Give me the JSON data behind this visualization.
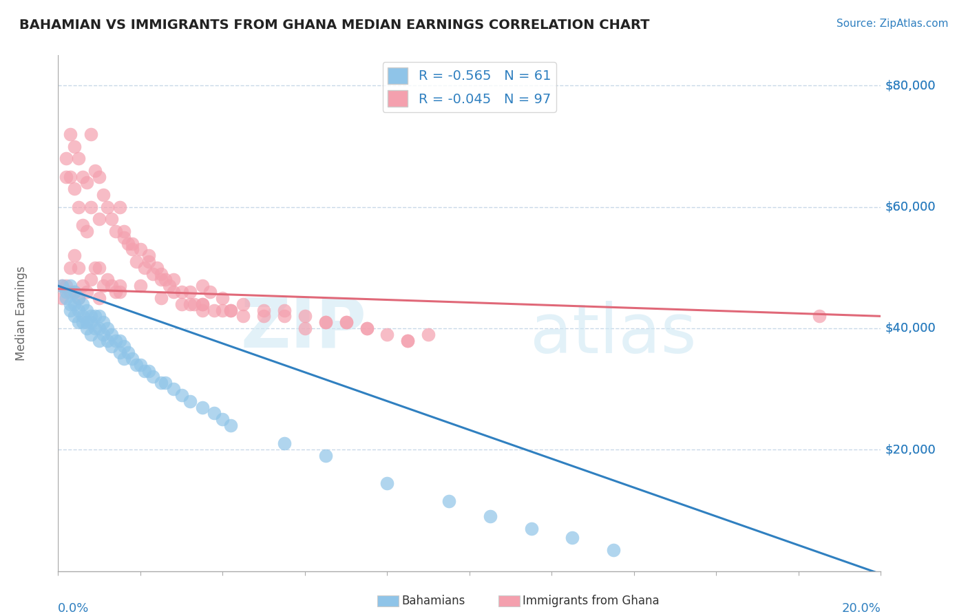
{
  "title": "BAHAMIAN VS IMMIGRANTS FROM GHANA MEDIAN EARNINGS CORRELATION CHART",
  "source": "Source: ZipAtlas.com",
  "ylabel": "Median Earnings",
  "xmin": 0.0,
  "xmax": 20.0,
  "ymin": 0,
  "ymax": 85000,
  "yticks": [
    0,
    20000,
    40000,
    60000,
    80000
  ],
  "ytick_labels": [
    "",
    "$20,000",
    "$40,000",
    "$60,000",
    "$80,000"
  ],
  "legend_r1_val": "-0.565",
  "legend_n1_val": "61",
  "legend_r2_val": "-0.045",
  "legend_n2_val": "97",
  "blue_color": "#8fc4e8",
  "pink_color": "#f4a0ae",
  "blue_line_color": "#3080c0",
  "pink_line_color": "#e06878",
  "text_blue": "#3080c0",
  "background": "#ffffff",
  "grid_color": "#c8d8e8",
  "blue_line_x0": 0.0,
  "blue_line_y0": 47000,
  "blue_line_x1": 20.0,
  "blue_line_y1": -500,
  "pink_line_x0": 0.0,
  "pink_line_y0": 46500,
  "pink_line_x1": 20.0,
  "pink_line_y1": 42000,
  "blue_scatter_x": [
    0.1,
    0.2,
    0.2,
    0.3,
    0.3,
    0.3,
    0.4,
    0.4,
    0.4,
    0.5,
    0.5,
    0.5,
    0.6,
    0.6,
    0.6,
    0.7,
    0.7,
    0.7,
    0.8,
    0.8,
    0.8,
    0.9,
    0.9,
    1.0,
    1.0,
    1.0,
    1.1,
    1.1,
    1.2,
    1.2,
    1.3,
    1.3,
    1.4,
    1.5,
    1.5,
    1.6,
    1.6,
    1.7,
    1.8,
    1.9,
    2.0,
    2.1,
    2.2,
    2.3,
    2.5,
    2.6,
    2.8,
    3.0,
    3.2,
    3.5,
    3.8,
    4.0,
    4.2,
    5.5,
    6.5,
    8.0,
    9.5,
    10.5,
    11.5,
    12.5,
    13.5
  ],
  "blue_scatter_y": [
    47000,
    46000,
    45000,
    47000,
    44000,
    43000,
    46000,
    44000,
    42000,
    45000,
    43000,
    41000,
    44000,
    42000,
    41000,
    43000,
    41000,
    40000,
    42000,
    41000,
    39000,
    42000,
    40000,
    42000,
    40000,
    38000,
    41000,
    39000,
    40000,
    38000,
    39000,
    37000,
    38000,
    38000,
    36000,
    37000,
    35000,
    36000,
    35000,
    34000,
    34000,
    33000,
    33000,
    32000,
    31000,
    31000,
    30000,
    29000,
    28000,
    27000,
    26000,
    25000,
    24000,
    21000,
    19000,
    14500,
    11500,
    9000,
    7000,
    5500,
    3500
  ],
  "pink_scatter_x": [
    0.1,
    0.1,
    0.2,
    0.2,
    0.2,
    0.3,
    0.3,
    0.3,
    0.3,
    0.4,
    0.4,
    0.4,
    0.4,
    0.5,
    0.5,
    0.5,
    0.5,
    0.6,
    0.6,
    0.6,
    0.7,
    0.7,
    0.7,
    0.8,
    0.8,
    0.8,
    0.9,
    0.9,
    1.0,
    1.0,
    1.0,
    1.0,
    1.1,
    1.1,
    1.2,
    1.2,
    1.3,
    1.3,
    1.4,
    1.4,
    1.5,
    1.5,
    1.6,
    1.7,
    1.8,
    1.9,
    2.0,
    2.0,
    2.1,
    2.2,
    2.3,
    2.4,
    2.5,
    2.6,
    2.7,
    2.8,
    3.0,
    3.2,
    3.3,
    3.5,
    3.5,
    3.7,
    3.8,
    4.0,
    4.2,
    4.5,
    5.0,
    5.5,
    6.0,
    6.5,
    7.0,
    7.5,
    8.5,
    9.0,
    1.6,
    1.8,
    2.2,
    2.5,
    2.8,
    3.0,
    3.5,
    4.0,
    4.5,
    5.0,
    6.0,
    3.2,
    4.2,
    5.5,
    6.5,
    7.0,
    7.5,
    8.0,
    8.5,
    18.5,
    1.5,
    2.5,
    3.5
  ],
  "pink_scatter_y": [
    47000,
    45000,
    68000,
    65000,
    47000,
    72000,
    65000,
    50000,
    46000,
    70000,
    63000,
    52000,
    46000,
    68000,
    60000,
    50000,
    45000,
    65000,
    57000,
    47000,
    64000,
    56000,
    46000,
    72000,
    60000,
    48000,
    66000,
    50000,
    65000,
    58000,
    50000,
    45000,
    62000,
    47000,
    60000,
    48000,
    58000,
    47000,
    56000,
    46000,
    60000,
    47000,
    55000,
    54000,
    53000,
    51000,
    53000,
    47000,
    50000,
    52000,
    49000,
    50000,
    49000,
    48000,
    47000,
    48000,
    46000,
    46000,
    44000,
    47000,
    44000,
    46000,
    43000,
    45000,
    43000,
    44000,
    43000,
    43000,
    42000,
    41000,
    41000,
    40000,
    38000,
    39000,
    56000,
    54000,
    51000,
    48000,
    46000,
    44000,
    44000,
    43000,
    42000,
    42000,
    40000,
    44000,
    43000,
    42000,
    41000,
    41000,
    40000,
    39000,
    38000,
    42000,
    46000,
    45000,
    43000
  ]
}
